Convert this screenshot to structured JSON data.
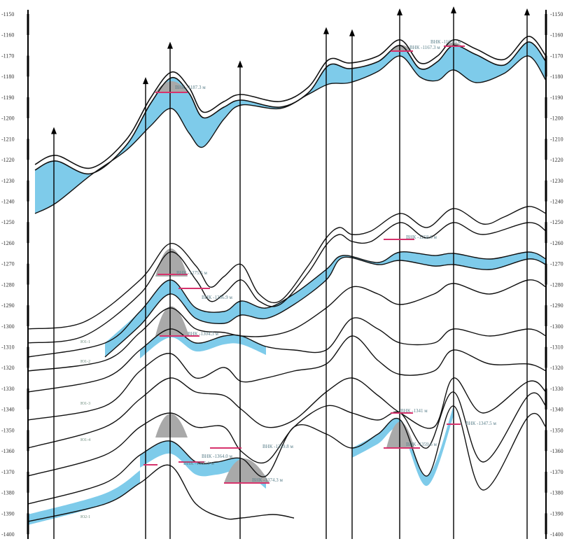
{
  "axis": {
    "ticks": [
      -1150,
      -1160,
      -1170,
      -1180,
      -1190,
      -1200,
      -1210,
      -1220,
      -1230,
      -1240,
      -1250,
      -1260,
      -1270,
      -1280,
      -1290,
      -1300,
      -1310,
      -1320,
      -1330,
      -1340,
      -1350,
      -1360,
      -1370,
      -1380,
      -1390,
      -1400
    ],
    "range": [
      -1150,
      -1400
    ]
  },
  "wells": [
    {
      "id": "well-1",
      "top_depth": -1205
    },
    {
      "id": "well-2",
      "top_depth": -1181
    },
    {
      "id": "well-3",
      "top_depth": -1164
    },
    {
      "id": "well-4",
      "top_depth": -1173
    },
    {
      "id": "well-5",
      "top_depth": -1157
    },
    {
      "id": "well-6",
      "top_depth": -1158
    },
    {
      "id": "well-7",
      "top_depth": -1148
    },
    {
      "id": "well-8",
      "top_depth": -1147
    },
    {
      "id": "well-9",
      "top_depth": -1148
    }
  ],
  "contacts": [
    {
      "label": "ВНК -1187.3 м"
    },
    {
      "label": "ВНК -1167.3 м"
    },
    {
      "label": "ВНК -1165.5 м"
    },
    {
      "label": "ВНК -1258.6 м"
    },
    {
      "label": "ВНК -1275.5 м"
    },
    {
      "label": "ВНК -1286.9 м"
    },
    {
      "label": "ВНК -1304.3 м"
    },
    {
      "label": "ВНК -1364.0 м"
    },
    {
      "label": "ВНК -1366.1 м"
    },
    {
      "label": "ВНК -1359.8 м"
    },
    {
      "label": "ВНК -1374.3 м"
    },
    {
      "label": "ВНК -1341 м"
    },
    {
      "label": "ВНК -1359.6 м"
    },
    {
      "label": "ВНК -1347.5 м"
    }
  ],
  "layers": [
    {
      "label": "Ю1-1"
    },
    {
      "label": "Ю1-2"
    },
    {
      "label": "Ю1-3"
    },
    {
      "label": "Ю1-4"
    },
    {
      "label": "Ю2-1"
    }
  ],
  "colors": {
    "water": "#7ecbea",
    "oil": "#a9a9a9",
    "contact": "#d6336c",
    "line": "#111111"
  }
}
